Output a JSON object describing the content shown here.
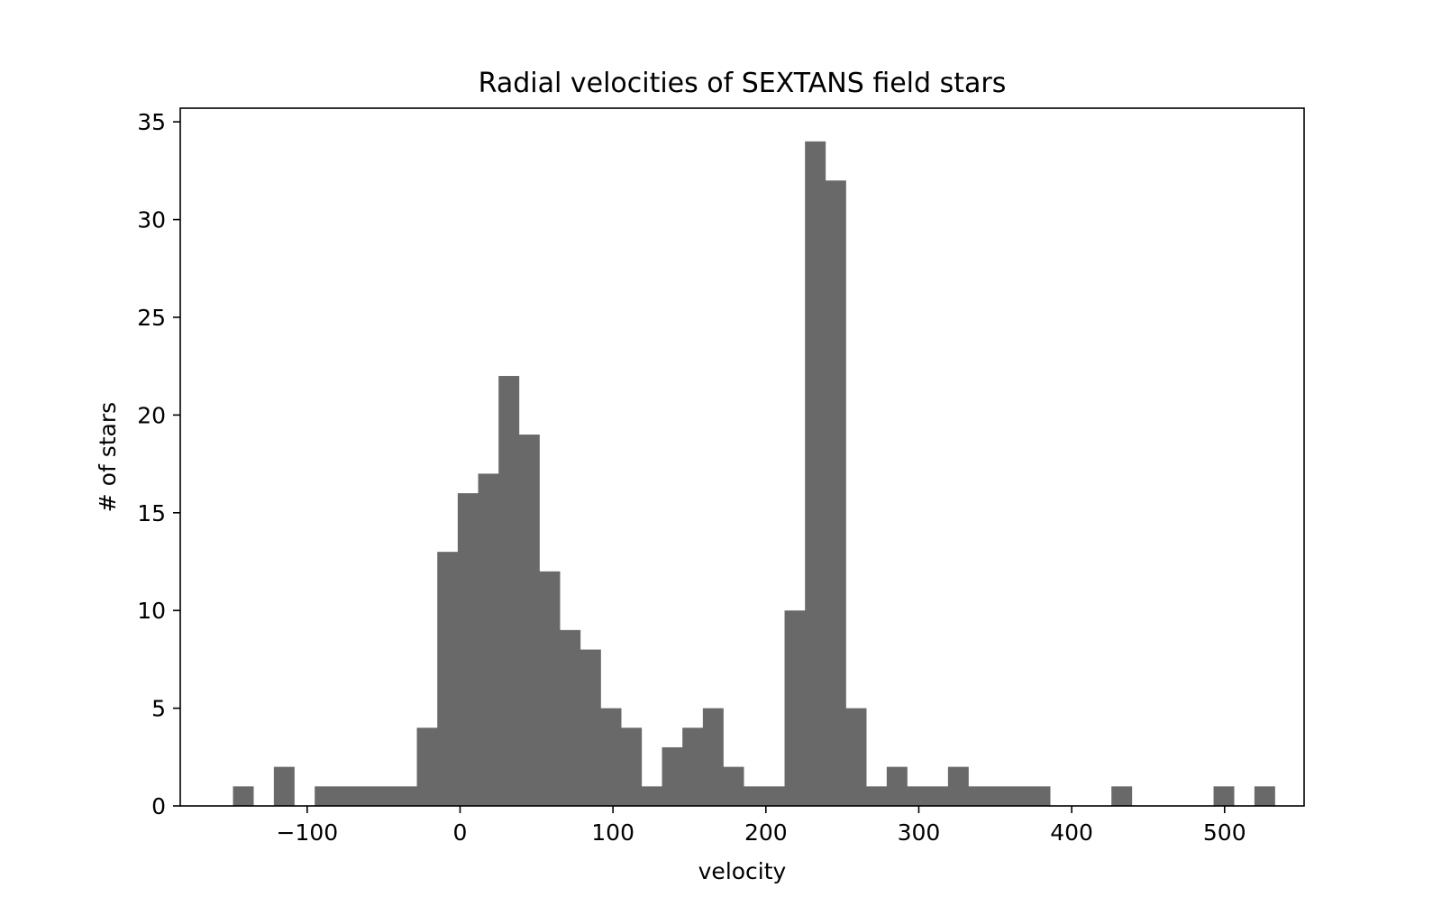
{
  "chart_data": {
    "type": "bar",
    "title": "Radial velocities of SEXTANS field stars",
    "xlabel": "velocity",
    "ylabel": "# of stars",
    "xlim": [
      -183,
      552
    ],
    "ylim": [
      0,
      35.7
    ],
    "xticks": [
      -100,
      0,
      100,
      200,
      300,
      400,
      500
    ],
    "xtick_labels": [
      "−100",
      "0",
      "100",
      "200",
      "300",
      "400",
      "500"
    ],
    "yticks": [
      0,
      5,
      10,
      15,
      20,
      25,
      30,
      35
    ],
    "ytick_labels": [
      "0",
      "5",
      "10",
      "15",
      "20",
      "25",
      "30",
      "35"
    ],
    "bin_start": -148.5,
    "bin_width": 13.36,
    "counts": [
      1,
      0,
      2,
      0,
      1,
      1,
      1,
      1,
      1,
      4,
      13,
      16,
      17,
      22,
      19,
      12,
      9,
      8,
      5,
      4,
      1,
      3,
      4,
      5,
      2,
      1,
      1,
      10,
      34,
      32,
      5,
      1,
      2,
      1,
      1,
      2,
      1,
      1,
      1,
      1,
      0,
      0,
      0,
      1,
      0,
      0,
      0,
      0,
      1,
      0,
      1
    ],
    "bar_color": "#696969",
    "grid": false,
    "legend": "none"
  }
}
